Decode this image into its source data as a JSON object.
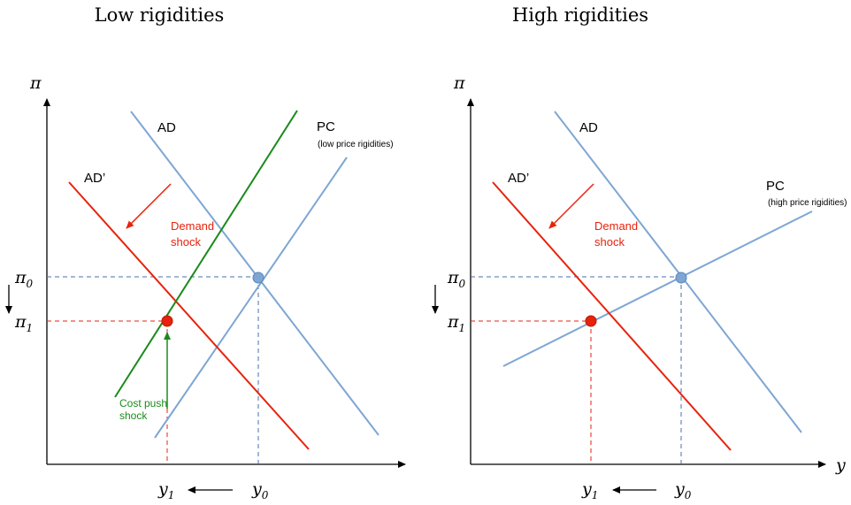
{
  "panels": {
    "left": {
      "title": "Low rigidities",
      "ad_label": "AD",
      "ad_prime_label": "AD’",
      "pc_label": "PC",
      "pc_note": "(low price rigidities)",
      "demand_shock": [
        "Demand",
        "shock"
      ],
      "cost_push_shock": [
        "Cost push",
        "shock"
      ]
    },
    "right": {
      "title": "High rigidities",
      "ad_label": "AD",
      "ad_prime_label": "AD’",
      "pc_label": "PC",
      "pc_note": "(high price rigidities)",
      "demand_shock": [
        "Demand",
        "shock"
      ],
      "x_axis_label": "y"
    }
  },
  "axes": {
    "y_axis_symbol": "π",
    "pi0": {
      "base": "π",
      "sub": "0"
    },
    "pi1": {
      "base": "π",
      "sub": "1"
    },
    "y0": {
      "base": "y",
      "sub": "0"
    },
    "y1": {
      "base": "y",
      "sub": "1"
    }
  },
  "colors": {
    "ad": "#7ea6d3",
    "pc": "#7ea6d3",
    "ad_prime": "#e8220c",
    "cost_push": "#1a8a1a",
    "dash_blue": "#4a6fa8",
    "dash_red": "#e8220c",
    "eq0_point": "#7ea6d3",
    "eq1_point": "#e8220c"
  }
}
